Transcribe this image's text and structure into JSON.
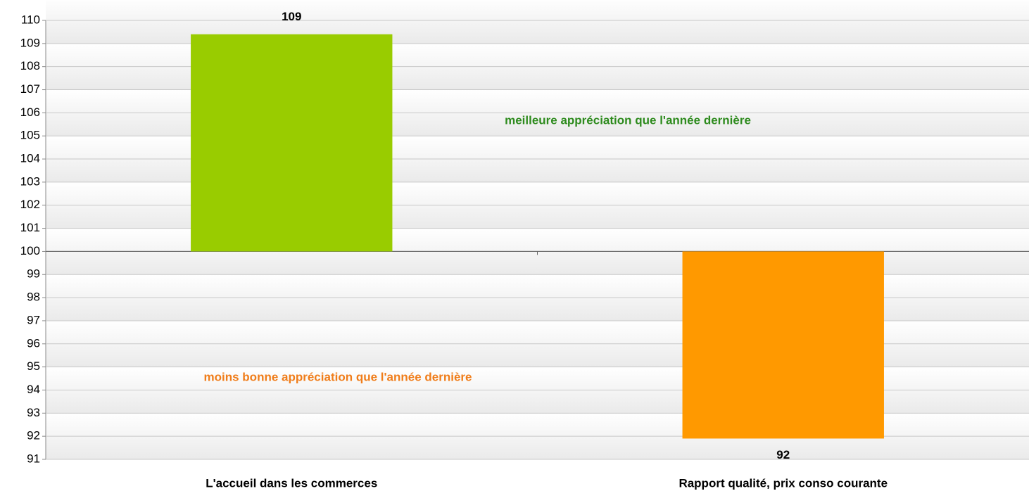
{
  "chart_data": {
    "type": "bar",
    "categories": [
      "L'accueil dans les commerces",
      "Rapport qualité, prix conso courante"
    ],
    "values": [
      109.4,
      91.9
    ],
    "value_labels": [
      "109",
      "92"
    ],
    "colors": [
      "#99cc00",
      "#ff9900"
    ],
    "baseline": 100,
    "ylim": [
      91,
      110
    ],
    "yticks": [
      91,
      92,
      93,
      94,
      95,
      96,
      97,
      98,
      99,
      100,
      101,
      102,
      103,
      104,
      105,
      106,
      107,
      108,
      109,
      110
    ],
    "grid": true,
    "annotations": [
      {
        "text": "meilleure appréciation que l'année dernière",
        "color": "#2e8b1e"
      },
      {
        "text": "moins bonne appréciation que l'année dernière",
        "color": "#f07d1a"
      }
    ]
  }
}
